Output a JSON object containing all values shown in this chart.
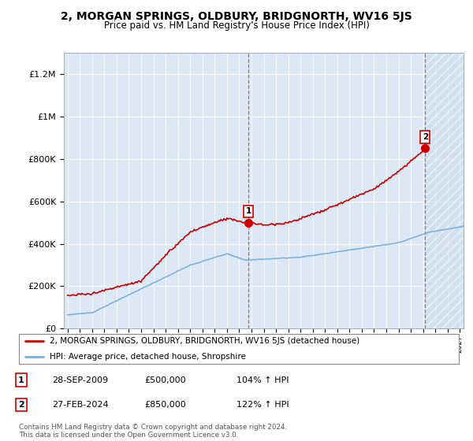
{
  "title": "2, MORGAN SPRINGS, OLDBURY, BRIDGNORTH, WV16 5JS",
  "subtitle": "Price paid vs. HM Land Registry's House Price Index (HPI)",
  "background_color": "#ffffff",
  "plot_bg_color": "#dce8f5",
  "red_line_color": "#cc0000",
  "blue_line_color": "#7aaed6",
  "ylim": [
    0,
    1300000
  ],
  "yticks": [
    0,
    200000,
    400000,
    600000,
    800000,
    1000000,
    1200000
  ],
  "ytick_labels": [
    "£0",
    "£200K",
    "£400K",
    "£600K",
    "£800K",
    "£1M",
    "£1.2M"
  ],
  "legend_red_label": "2, MORGAN SPRINGS, OLDBURY, BRIDGNORTH, WV16 5JS (detached house)",
  "legend_blue_label": "HPI: Average price, detached house, Shropshire",
  "annotation1_date": "28-SEP-2009",
  "annotation1_price": "£500,000",
  "annotation1_hpi": "104% ↑ HPI",
  "annotation2_date": "27-FEB-2024",
  "annotation2_price": "£850,000",
  "annotation2_hpi": "122% ↑ HPI",
  "footer": "Contains HM Land Registry data © Crown copyright and database right 2024.\nThis data is licensed under the Open Government Licence v3.0.",
  "xstart_year": 1995,
  "xend_year": 2027,
  "sale1_year": 2009.75,
  "sale2_year": 2024.17,
  "sale1_price": 500000,
  "sale2_price": 850000
}
